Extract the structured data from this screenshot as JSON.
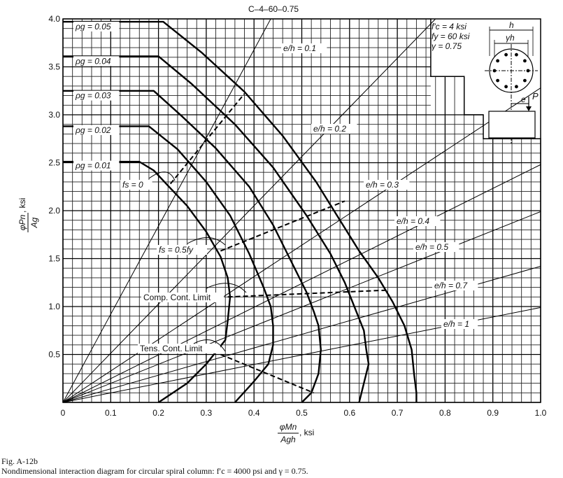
{
  "chart_data": {
    "type": "line",
    "title": "C-4-60-0.75",
    "xlabel": "φMn / (Ag h), ksi",
    "ylabel": "φPn / Ag, ksi",
    "xlim": [
      0,
      1.0
    ],
    "ylim": [
      0,
      4.0
    ],
    "grid": true,
    "grid_minor_x": 0.02,
    "grid_minor_y": 0.1,
    "x_ticks": [
      "0",
      "0.1",
      "0.2",
      "0.3",
      "0.4",
      "0.5",
      "0.6",
      "0.7",
      "0.8",
      "0.9",
      "1.0"
    ],
    "y_ticks": [
      "0.5",
      "1.0",
      "1.5",
      "2.0",
      "2.5",
      "3.0",
      "3.5",
      "4.0"
    ],
    "parameters": [
      "f'c = 4 ksi",
      "fy = 60 ksi",
      "γ = 0.75"
    ],
    "series": [
      {
        "name": "ρg = 0.01",
        "x": [
          0,
          0.16,
          0.19,
          0.22,
          0.26,
          0.3,
          0.33,
          0.345,
          0.35,
          0.345,
          0.34,
          0.3,
          0.26,
          0.2
        ],
        "y": [
          2.51,
          2.51,
          2.42,
          2.26,
          2.05,
          1.78,
          1.52,
          1.3,
          1.1,
          0.85,
          0.65,
          0.4,
          0.2,
          0.0
        ]
      },
      {
        "name": "ρg = 0.02",
        "x": [
          0,
          0.18,
          0.24,
          0.3,
          0.35,
          0.39,
          0.42,
          0.435,
          0.44,
          0.44,
          0.43,
          0.4,
          0.36
        ],
        "y": [
          2.88,
          2.88,
          2.64,
          2.3,
          1.95,
          1.55,
          1.2,
          1.0,
          0.8,
          0.6,
          0.4,
          0.22,
          0.0
        ]
      },
      {
        "name": "ρg = 0.03",
        "x": [
          0,
          0.19,
          0.25,
          0.32,
          0.39,
          0.44,
          0.48,
          0.51,
          0.525,
          0.535,
          0.54,
          0.535,
          0.52,
          0.5
        ],
        "y": [
          3.25,
          3.25,
          2.98,
          2.65,
          2.25,
          1.85,
          1.45,
          1.15,
          0.95,
          0.8,
          0.55,
          0.3,
          0.1,
          0.0
        ]
      },
      {
        "name": "ρg = 0.04",
        "x": [
          0,
          0.2,
          0.27,
          0.36,
          0.44,
          0.51,
          0.56,
          0.59,
          0.61,
          0.63,
          0.635,
          0.64,
          0.63,
          0.62
        ],
        "y": [
          3.61,
          3.61,
          3.32,
          2.9,
          2.45,
          1.95,
          1.55,
          1.25,
          1.0,
          0.75,
          0.55,
          0.4,
          0.2,
          0.0
        ]
      },
      {
        "name": "ρg = 0.05",
        "x": [
          0,
          0.21,
          0.29,
          0.38,
          0.46,
          0.53,
          0.58,
          0.62,
          0.66,
          0.69,
          0.715,
          0.73,
          0.735,
          0.74,
          0.74
        ],
        "y": [
          3.97,
          3.97,
          3.65,
          3.24,
          2.78,
          2.3,
          1.9,
          1.58,
          1.3,
          1.05,
          0.8,
          0.55,
          0.3,
          0.1,
          0.0
        ]
      }
    ],
    "eccentricity_lines": [
      {
        "name": "e/h = 0.1",
        "x_end": 0.435,
        "y_end": 4.0
      },
      {
        "name": "e/h = 0.2",
        "x_end": 0.78,
        "y_end": 4.0
      },
      {
        "name": "e/h = 0.3",
        "x_end": 1.0,
        "y_end": 3.28
      },
      {
        "name": "e/h = 0.4",
        "x_end": 1.0,
        "y_end": 2.48
      },
      {
        "name": "e/h = 0.5",
        "x_end": 1.0,
        "y_end": 1.99
      },
      {
        "name": "e/h = 0.7",
        "x_end": 1.0,
        "y_end": 1.42
      },
      {
        "name": "e/h = 1",
        "x_end": 1.0,
        "y_end": 0.99
      }
    ],
    "dashed_lines": [
      {
        "name": "fs = 0",
        "x": [
          0.225,
          0.38
        ],
        "y": [
          2.28,
          3.22
        ]
      },
      {
        "name": "fs = 0.5fy",
        "x": [
          0.33,
          0.59
        ],
        "y": [
          1.58,
          2.1
        ]
      },
      {
        "name": "Comp. Cont. Limit",
        "x": [
          0.345,
          0.675
        ],
        "y": [
          1.1,
          1.17
        ]
      },
      {
        "name": "Tens. Cont. Limit",
        "x": [
          0.33,
          0.525
        ],
        "y": [
          0.5,
          0.1
        ]
      }
    ]
  },
  "annotations": {
    "title": "C–4–60–0.75",
    "rho_labels": [
      "ρg = 0.05",
      "ρg = 0.04",
      "ρg = 0.03",
      "ρg = 0.02",
      "ρg = 0.01"
    ],
    "eh_labels": [
      "e/h = 0.1",
      "e/h = 0.2",
      "e/h = 0.3",
      "e/h = 0.4",
      "e/h = 0.5",
      "e/h = 0.7",
      "e/h = 1"
    ],
    "fs0": "fs = 0",
    "fs05": "fs = 0.5fy",
    "comp_limit": "Comp. Cont. Limit",
    "tens_limit": "Tens. Cont. Limit",
    "param_fc": "f'c = 4 ksi",
    "param_fy": "fy = 60 ksi",
    "param_gamma": "γ = 0.75",
    "inset_h": "h",
    "inset_gh": "γh",
    "inset_e": "e",
    "inset_P": "P",
    "ylabel_num": "φPn",
    "ylabel_den": "Ag",
    "ylabel_unit": ", ksi",
    "xlabel_num": "φMn",
    "xlabel_den": "Agh",
    "xlabel_unit": ", ksi"
  },
  "caption": {
    "fig": "Fig. A-12b",
    "text": "Nondimensional interaction diagram for circular spiral column: f′c = 4000 psi and γ = 0.75."
  }
}
